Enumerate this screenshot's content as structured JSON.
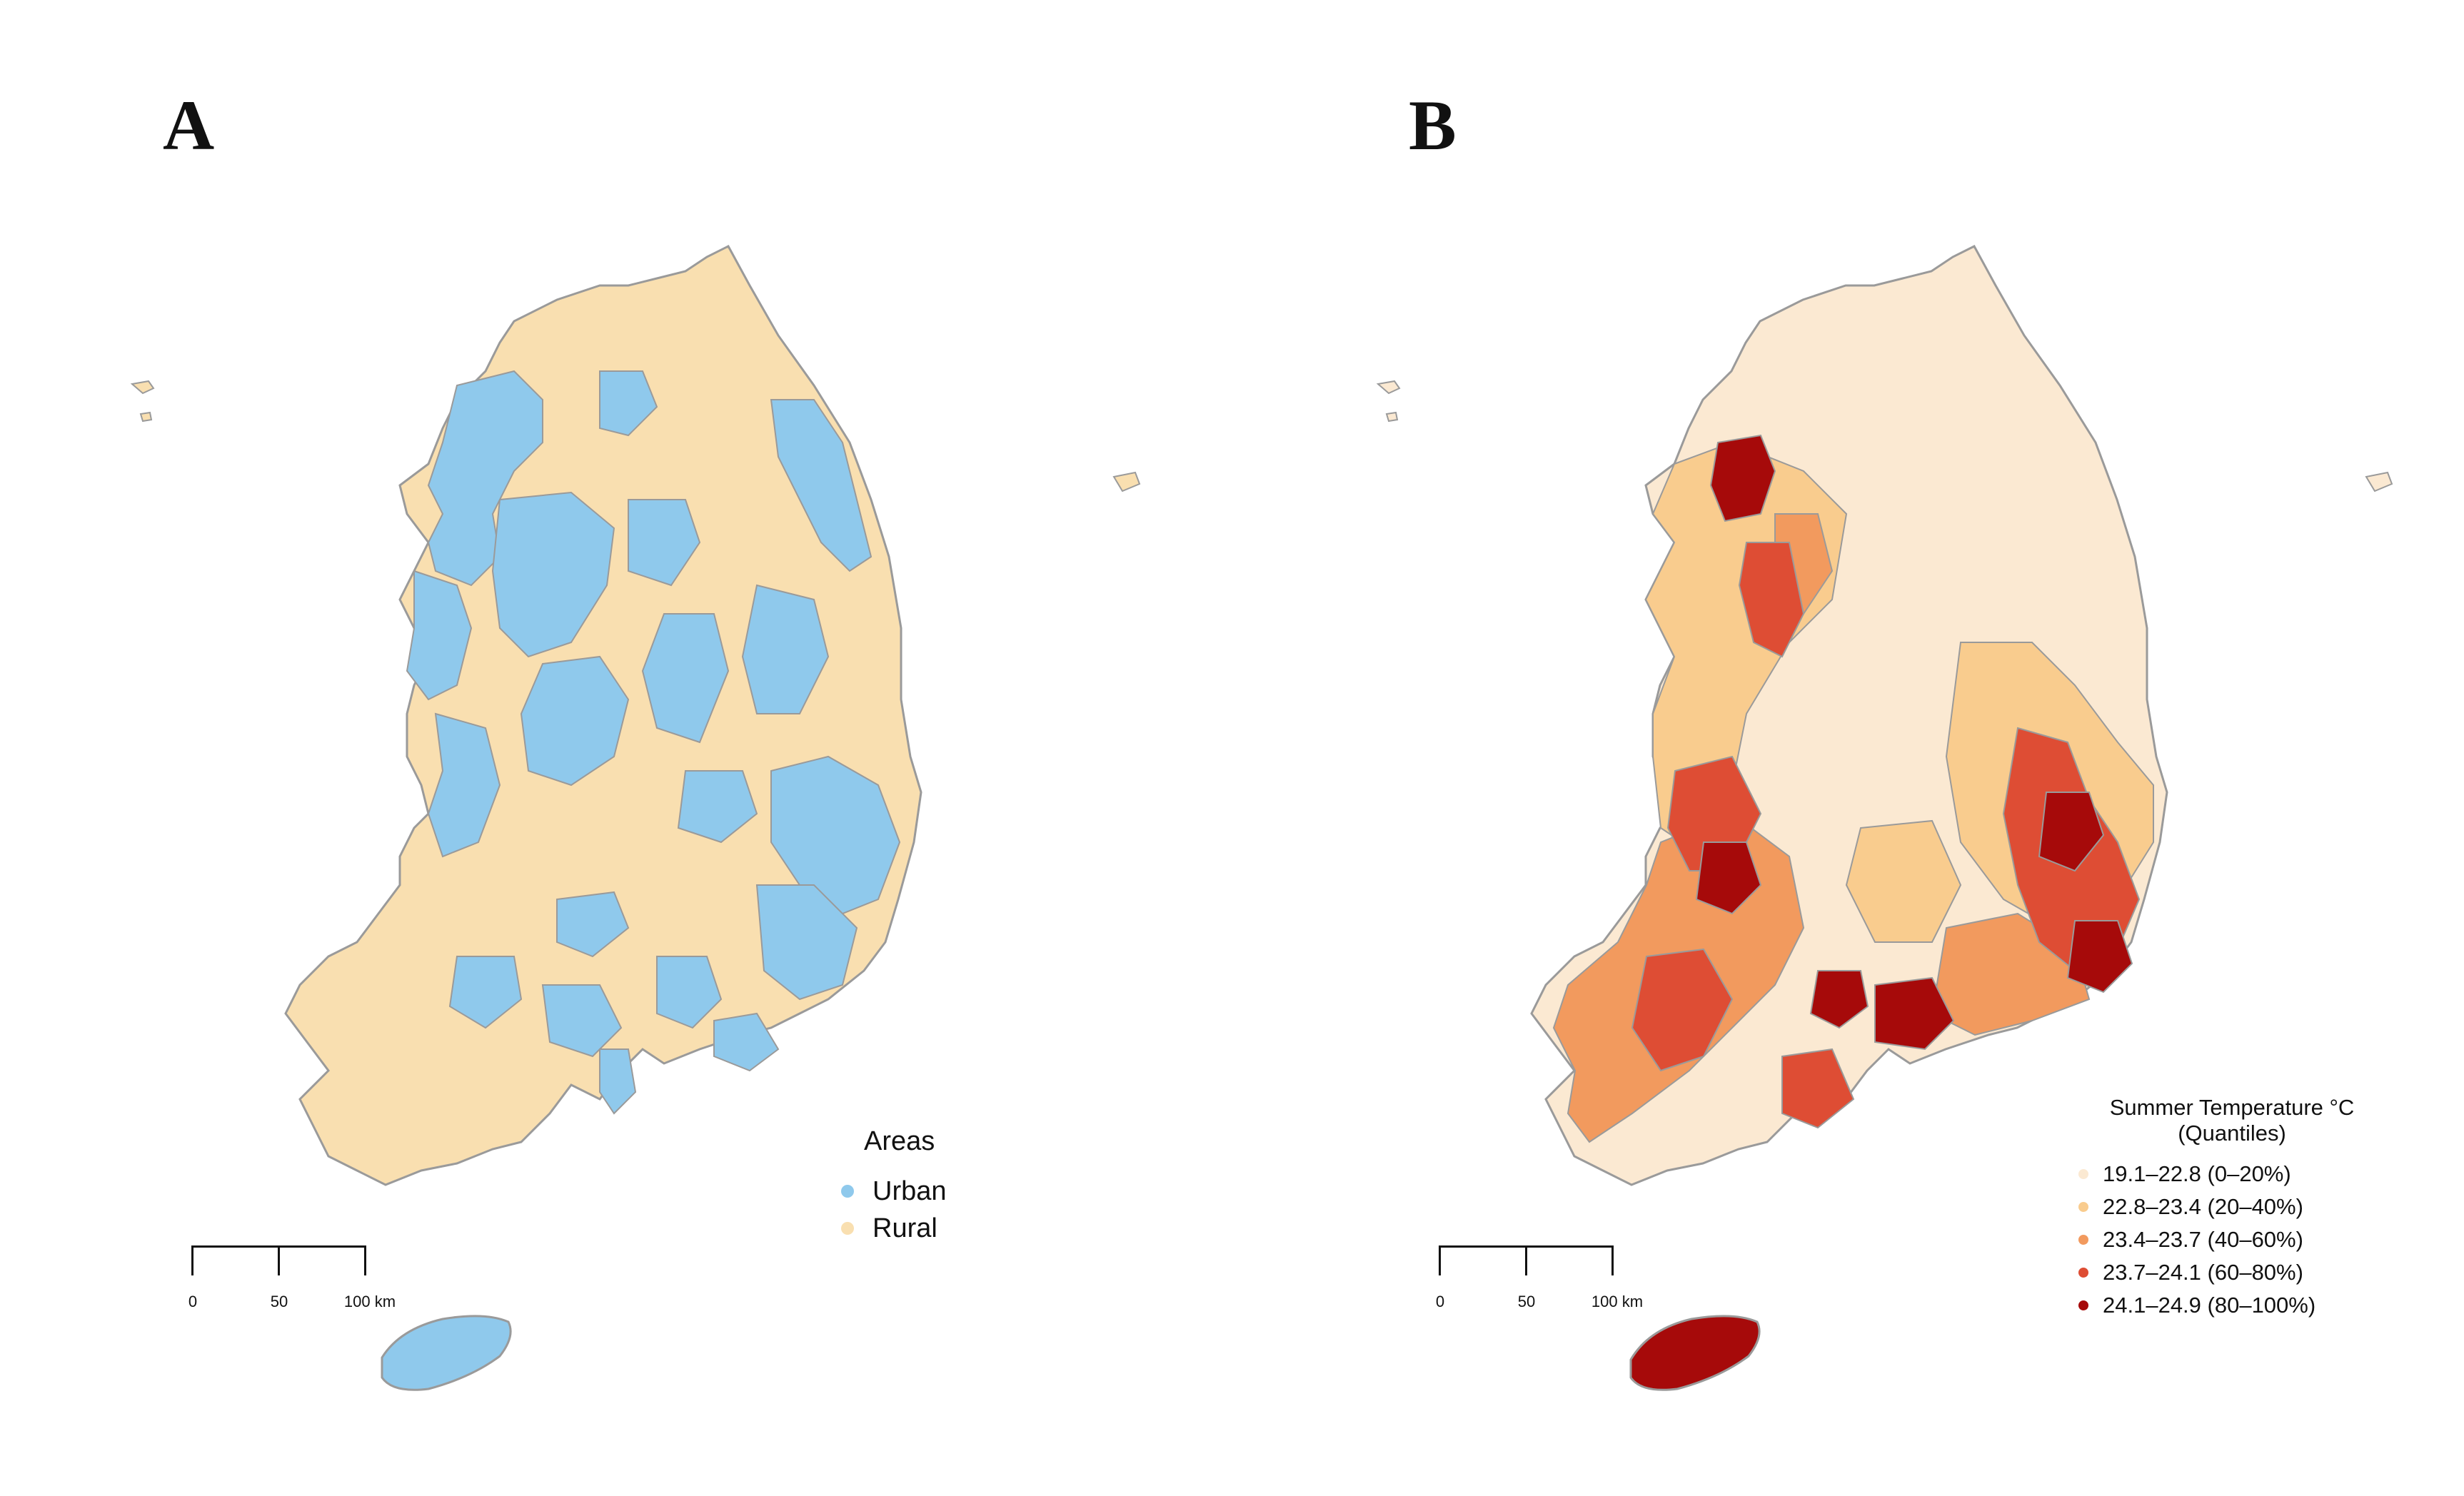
{
  "panels": [
    {
      "letter": "A",
      "legend": {
        "title": "Areas",
        "items": [
          {
            "label": "Urban",
            "color": "#8fc9ec"
          },
          {
            "label": "Rural",
            "color": "#f9dfb0"
          }
        ]
      }
    },
    {
      "letter": "B",
      "legend": {
        "title": "Summer Temperature °C",
        "subtitle": "(Quantiles)",
        "items": [
          {
            "label": "19.1–22.8 (0–20%)",
            "color": "#fbe9d2"
          },
          {
            "label": "22.8–23.4 (20–40%)",
            "color": "#f9cc8e"
          },
          {
            "label": "23.4–23.7 (40–60%)",
            "color": "#f29a5e"
          },
          {
            "label": "23.7–24.1 (60–80%)",
            "color": "#de4d34"
          },
          {
            "label": "24.1–24.9 (80–100%)",
            "color": "#a60a0a"
          }
        ]
      }
    }
  ],
  "scalebar": {
    "labels": [
      "0",
      "50",
      "100 km"
    ]
  },
  "colors": {
    "border": "#9a9a9a"
  }
}
